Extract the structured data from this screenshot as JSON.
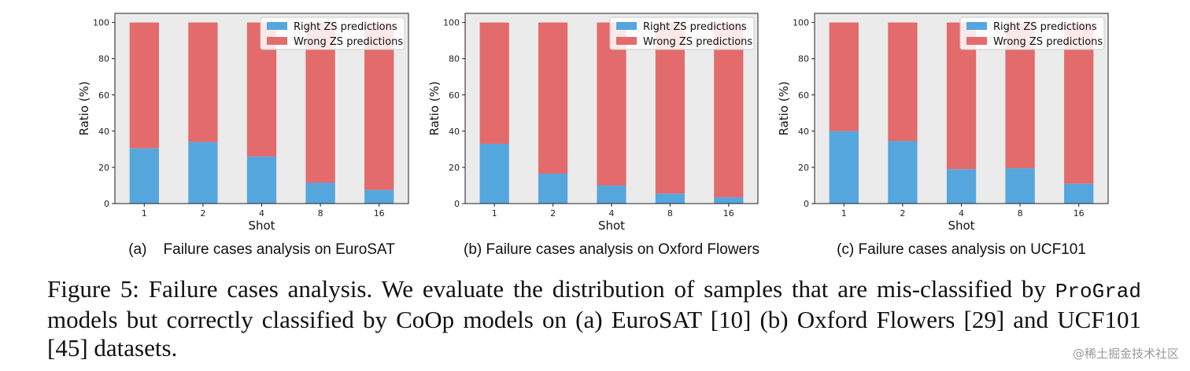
{
  "colors": {
    "right": "#56a6de",
    "wrong": "#e36b6c",
    "plot_bg": "#ebebeb"
  },
  "chart_data": [
    {
      "type": "bar",
      "stacked": true,
      "categories": [
        "1",
        "2",
        "4",
        "8",
        "16"
      ],
      "series": [
        {
          "name": "Right ZS predictions",
          "values": [
            30.5,
            34,
            26,
            11.5,
            7.5
          ]
        },
        {
          "name": "Wrong ZS predictions",
          "values": [
            69.5,
            66,
            74,
            88.5,
            92.5
          ]
        }
      ],
      "xlabel": "Shot",
      "ylabel": "Ratio (%)",
      "ylim": [
        0,
        100
      ],
      "yticks": [
        "0",
        "20",
        "40",
        "60",
        "80",
        "100"
      ],
      "legend": "top-right",
      "subcaption": "(a)    Failure cases analysis on EuroSAT"
    },
    {
      "type": "bar",
      "stacked": true,
      "categories": [
        "1",
        "2",
        "4",
        "8",
        "16"
      ],
      "series": [
        {
          "name": "Right ZS predictions",
          "values": [
            33,
            16.5,
            10,
            5.5,
            3.5
          ]
        },
        {
          "name": "Wrong ZS predictions",
          "values": [
            67,
            83.5,
            90,
            94.5,
            96.5
          ]
        }
      ],
      "xlabel": "Shot",
      "ylabel": "Ratio (%)",
      "ylim": [
        0,
        100
      ],
      "yticks": [
        "0",
        "20",
        "40",
        "60",
        "80",
        "100"
      ],
      "legend": "top-right",
      "subcaption": "(b) Failure cases analysis on Oxford Flowers"
    },
    {
      "type": "bar",
      "stacked": true,
      "categories": [
        "1",
        "2",
        "4",
        "8",
        "16"
      ],
      "series": [
        {
          "name": "Right ZS predictions",
          "values": [
            40,
            34.5,
            19,
            19.5,
            11
          ]
        },
        {
          "name": "Wrong ZS predictions",
          "values": [
            60,
            65.5,
            81,
            80.5,
            89
          ]
        }
      ],
      "xlabel": "Shot",
      "ylabel": "Ratio (%)",
      "ylim": [
        0,
        100
      ],
      "yticks": [
        "0",
        "20",
        "40",
        "60",
        "80",
        "100"
      ],
      "legend": "top-right",
      "subcaption": "(c) Failure cases analysis on UCF101"
    }
  ],
  "caption": {
    "part1": "Figure 5: Failure cases analysis.  We evaluate the distribution of samples that are mis-classified by ",
    "model": "ProGrad",
    "part2": " models but correctly classified by CoOp models on (a) EuroSAT [10] (b) Oxford Flowers [29] and UCF101 [45] datasets."
  },
  "watermark": "@稀土掘金技术社区"
}
